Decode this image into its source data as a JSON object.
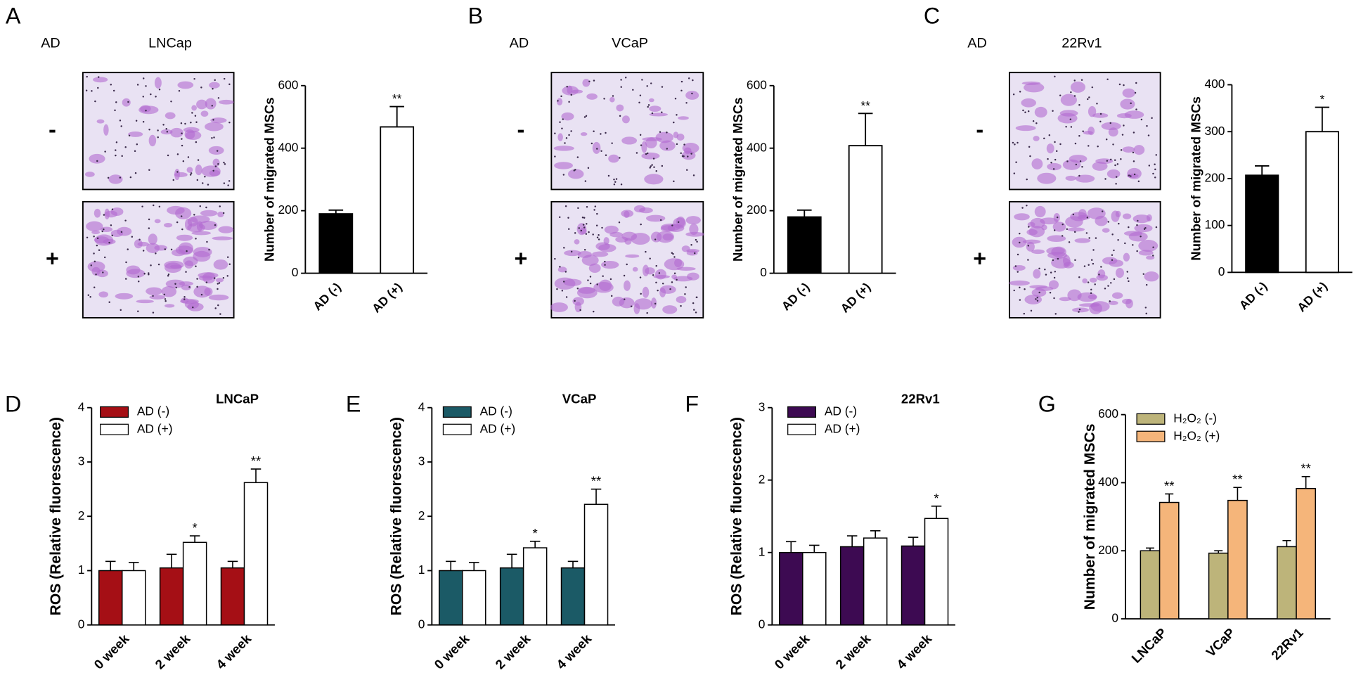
{
  "chart_data": [
    {
      "type": "bar",
      "panel": "A",
      "condition_label": "AD",
      "cell_line": "LNCap",
      "row_labels": [
        "-",
        "+"
      ],
      "ylabel": "Number of migrated MSCs",
      "categories": [
        "AD (-)",
        "AD (+)"
      ],
      "values": [
        190,
        468
      ],
      "errors": [
        12,
        65
      ],
      "colors": [
        "#000000",
        "#ffffff"
      ],
      "significance": [
        null,
        "**"
      ],
      "ylim": [
        0,
        600
      ],
      "yticks": [
        0,
        200,
        400,
        600
      ]
    },
    {
      "type": "bar",
      "panel": "B",
      "condition_label": "AD",
      "cell_line": "VCaP",
      "row_labels": [
        "-",
        "+"
      ],
      "ylabel": "Number of migrated MSCs",
      "categories": [
        "AD (-)",
        "AD (+)"
      ],
      "values": [
        180,
        408
      ],
      "errors": [
        22,
        103
      ],
      "colors": [
        "#000000",
        "#ffffff"
      ],
      "significance": [
        null,
        "**"
      ],
      "ylim": [
        0,
        600
      ],
      "yticks": [
        0,
        200,
        400,
        600
      ]
    },
    {
      "type": "bar",
      "panel": "C",
      "condition_label": "AD",
      "cell_line": "22Rv1",
      "row_labels": [
        "-",
        "+"
      ],
      "ylabel": "Number of migrated MSCs",
      "categories": [
        "AD (-)",
        "AD (+)"
      ],
      "values": [
        207,
        300
      ],
      "errors": [
        20,
        52
      ],
      "colors": [
        "#000000",
        "#ffffff"
      ],
      "significance": [
        null,
        "*"
      ],
      "ylim": [
        0,
        400
      ],
      "yticks": [
        0,
        100,
        200,
        300,
        400
      ]
    },
    {
      "type": "grouped_bar",
      "panel": "D",
      "title": "LNCaP",
      "title_color": "#a50f15",
      "ylabel": "ROS (Relative fluorescence)",
      "categories": [
        "0 week",
        "2 week",
        "4 week"
      ],
      "series": [
        {
          "name": "AD (-)",
          "color": "#a50f15",
          "values": [
            1.0,
            1.05,
            1.05
          ],
          "errors": [
            0.17,
            0.25,
            0.12
          ],
          "significance": [
            null,
            null,
            null
          ]
        },
        {
          "name": "AD (+)",
          "color": "#ffffff",
          "values": [
            1.0,
            1.52,
            2.62
          ],
          "errors": [
            0.15,
            0.12,
            0.25
          ],
          "significance": [
            null,
            "*",
            "**"
          ]
        }
      ],
      "ylim": [
        0,
        4
      ],
      "yticks": [
        0,
        1,
        2,
        3,
        4
      ]
    },
    {
      "type": "grouped_bar",
      "panel": "E",
      "title": "VCaP",
      "title_color": "#1b5a66",
      "ylabel": "ROS (Relative fluorescence)",
      "categories": [
        "0 week",
        "2 week",
        "4 week"
      ],
      "series": [
        {
          "name": "AD (-)",
          "color": "#1b5a66",
          "values": [
            1.0,
            1.05,
            1.05
          ],
          "errors": [
            0.17,
            0.25,
            0.12
          ],
          "significance": [
            null,
            null,
            null
          ]
        },
        {
          "name": "AD (+)",
          "color": "#ffffff",
          "values": [
            1.0,
            1.42,
            2.22
          ],
          "errors": [
            0.15,
            0.12,
            0.28
          ],
          "significance": [
            null,
            "*",
            "**"
          ]
        }
      ],
      "ylim": [
        0,
        4
      ],
      "yticks": [
        0,
        1,
        2,
        3,
        4
      ]
    },
    {
      "type": "grouped_bar",
      "panel": "F",
      "title": "22Rv1",
      "title_color": "#3d0a52",
      "ylabel": "ROS (Relative fluorescence)",
      "categories": [
        "0 week",
        "2 week",
        "4 week"
      ],
      "series": [
        {
          "name": "AD (-)",
          "color": "#3d0a52",
          "values": [
            1.0,
            1.08,
            1.09
          ],
          "errors": [
            0.15,
            0.15,
            0.12
          ],
          "significance": [
            null,
            null,
            null
          ]
        },
        {
          "name": "AD (+)",
          "color": "#ffffff",
          "values": [
            1.0,
            1.2,
            1.47
          ],
          "errors": [
            0.1,
            0.1,
            0.17
          ],
          "significance": [
            null,
            null,
            "*"
          ]
        }
      ],
      "ylim": [
        0,
        3
      ],
      "yticks": [
        0,
        1,
        2,
        3
      ]
    },
    {
      "type": "grouped_bar",
      "panel": "G",
      "ylabel": "Number of migrated MSCs",
      "categories": [
        "LNCaP",
        "VCaP",
        "22Rv1"
      ],
      "series": [
        {
          "name": "H₂O₂ (-)",
          "color": "#bdb47a",
          "values": [
            200,
            193,
            212
          ],
          "errors": [
            8,
            7,
            18
          ],
          "significance": [
            null,
            null,
            null
          ]
        },
        {
          "name": "H₂O₂ (+)",
          "color": "#f5b57a",
          "values": [
            342,
            348,
            383
          ],
          "errors": [
            25,
            38,
            35
          ],
          "significance": [
            "**",
            "**",
            "**"
          ]
        }
      ],
      "ylim": [
        0,
        600
      ],
      "yticks": [
        0,
        200,
        400,
        600
      ]
    }
  ]
}
